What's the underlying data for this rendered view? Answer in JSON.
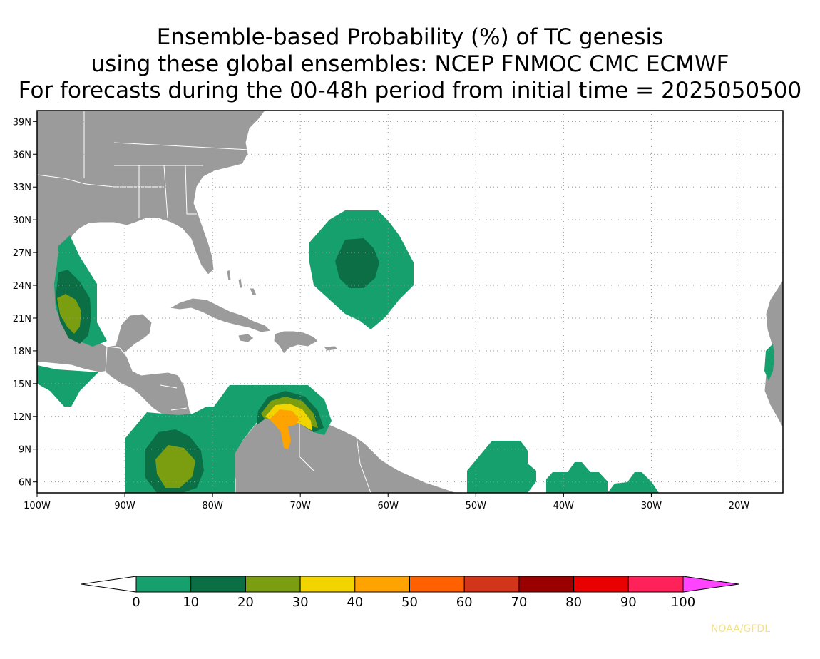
{
  "title": {
    "line1": "Ensemble-based Probability (%) of TC genesis",
    "line2": "using these global ensembles:   NCEP FNMOC CMC ECMWF",
    "line3": "For forecasts during the 00-48h period from initial time = 2025050500"
  },
  "map": {
    "lon_range": [
      -100,
      -15
    ],
    "lat_range": [
      5,
      40
    ],
    "lon_ticks": [
      {
        "value": -100,
        "label": "100W"
      },
      {
        "value": -90,
        "label": "90W"
      },
      {
        "value": -80,
        "label": "80W"
      },
      {
        "value": -70,
        "label": "70W"
      },
      {
        "value": -60,
        "label": "60W"
      },
      {
        "value": -50,
        "label": "50W"
      },
      {
        "value": -40,
        "label": "40W"
      },
      {
        "value": -30,
        "label": "30W"
      },
      {
        "value": -20,
        "label": "20W"
      }
    ],
    "lat_ticks": [
      {
        "value": 6,
        "label": "6N"
      },
      {
        "value": 9,
        "label": "9N"
      },
      {
        "value": 12,
        "label": "12N"
      },
      {
        "value": 15,
        "label": "15N"
      },
      {
        "value": 18,
        "label": "18N"
      },
      {
        "value": 21,
        "label": "21N"
      },
      {
        "value": 24,
        "label": "24N"
      },
      {
        "value": 27,
        "label": "27N"
      },
      {
        "value": 30,
        "label": "30N"
      },
      {
        "value": 33,
        "label": "33N"
      },
      {
        "value": 36,
        "label": "36N"
      },
      {
        "value": 39,
        "label": "39N"
      }
    ],
    "land_color": "#9b9b9b",
    "ocean_color": "#ffffff",
    "grid": "dotted"
  },
  "colorbar": {
    "labels": [
      "0",
      "10",
      "20",
      "30",
      "40",
      "50",
      "60",
      "70",
      "80",
      "90",
      "100"
    ],
    "colors": [
      "#16a06e",
      "#0b6e45",
      "#7a9e10",
      "#f2d500",
      "#ffa300",
      "#ff6000",
      "#d2351a",
      "#9b0000",
      "#e90000",
      "#ff2159"
    ],
    "under_color": "#ffffff",
    "over_color": "#ff44ff"
  },
  "credit": "NOAA/GFDL"
}
